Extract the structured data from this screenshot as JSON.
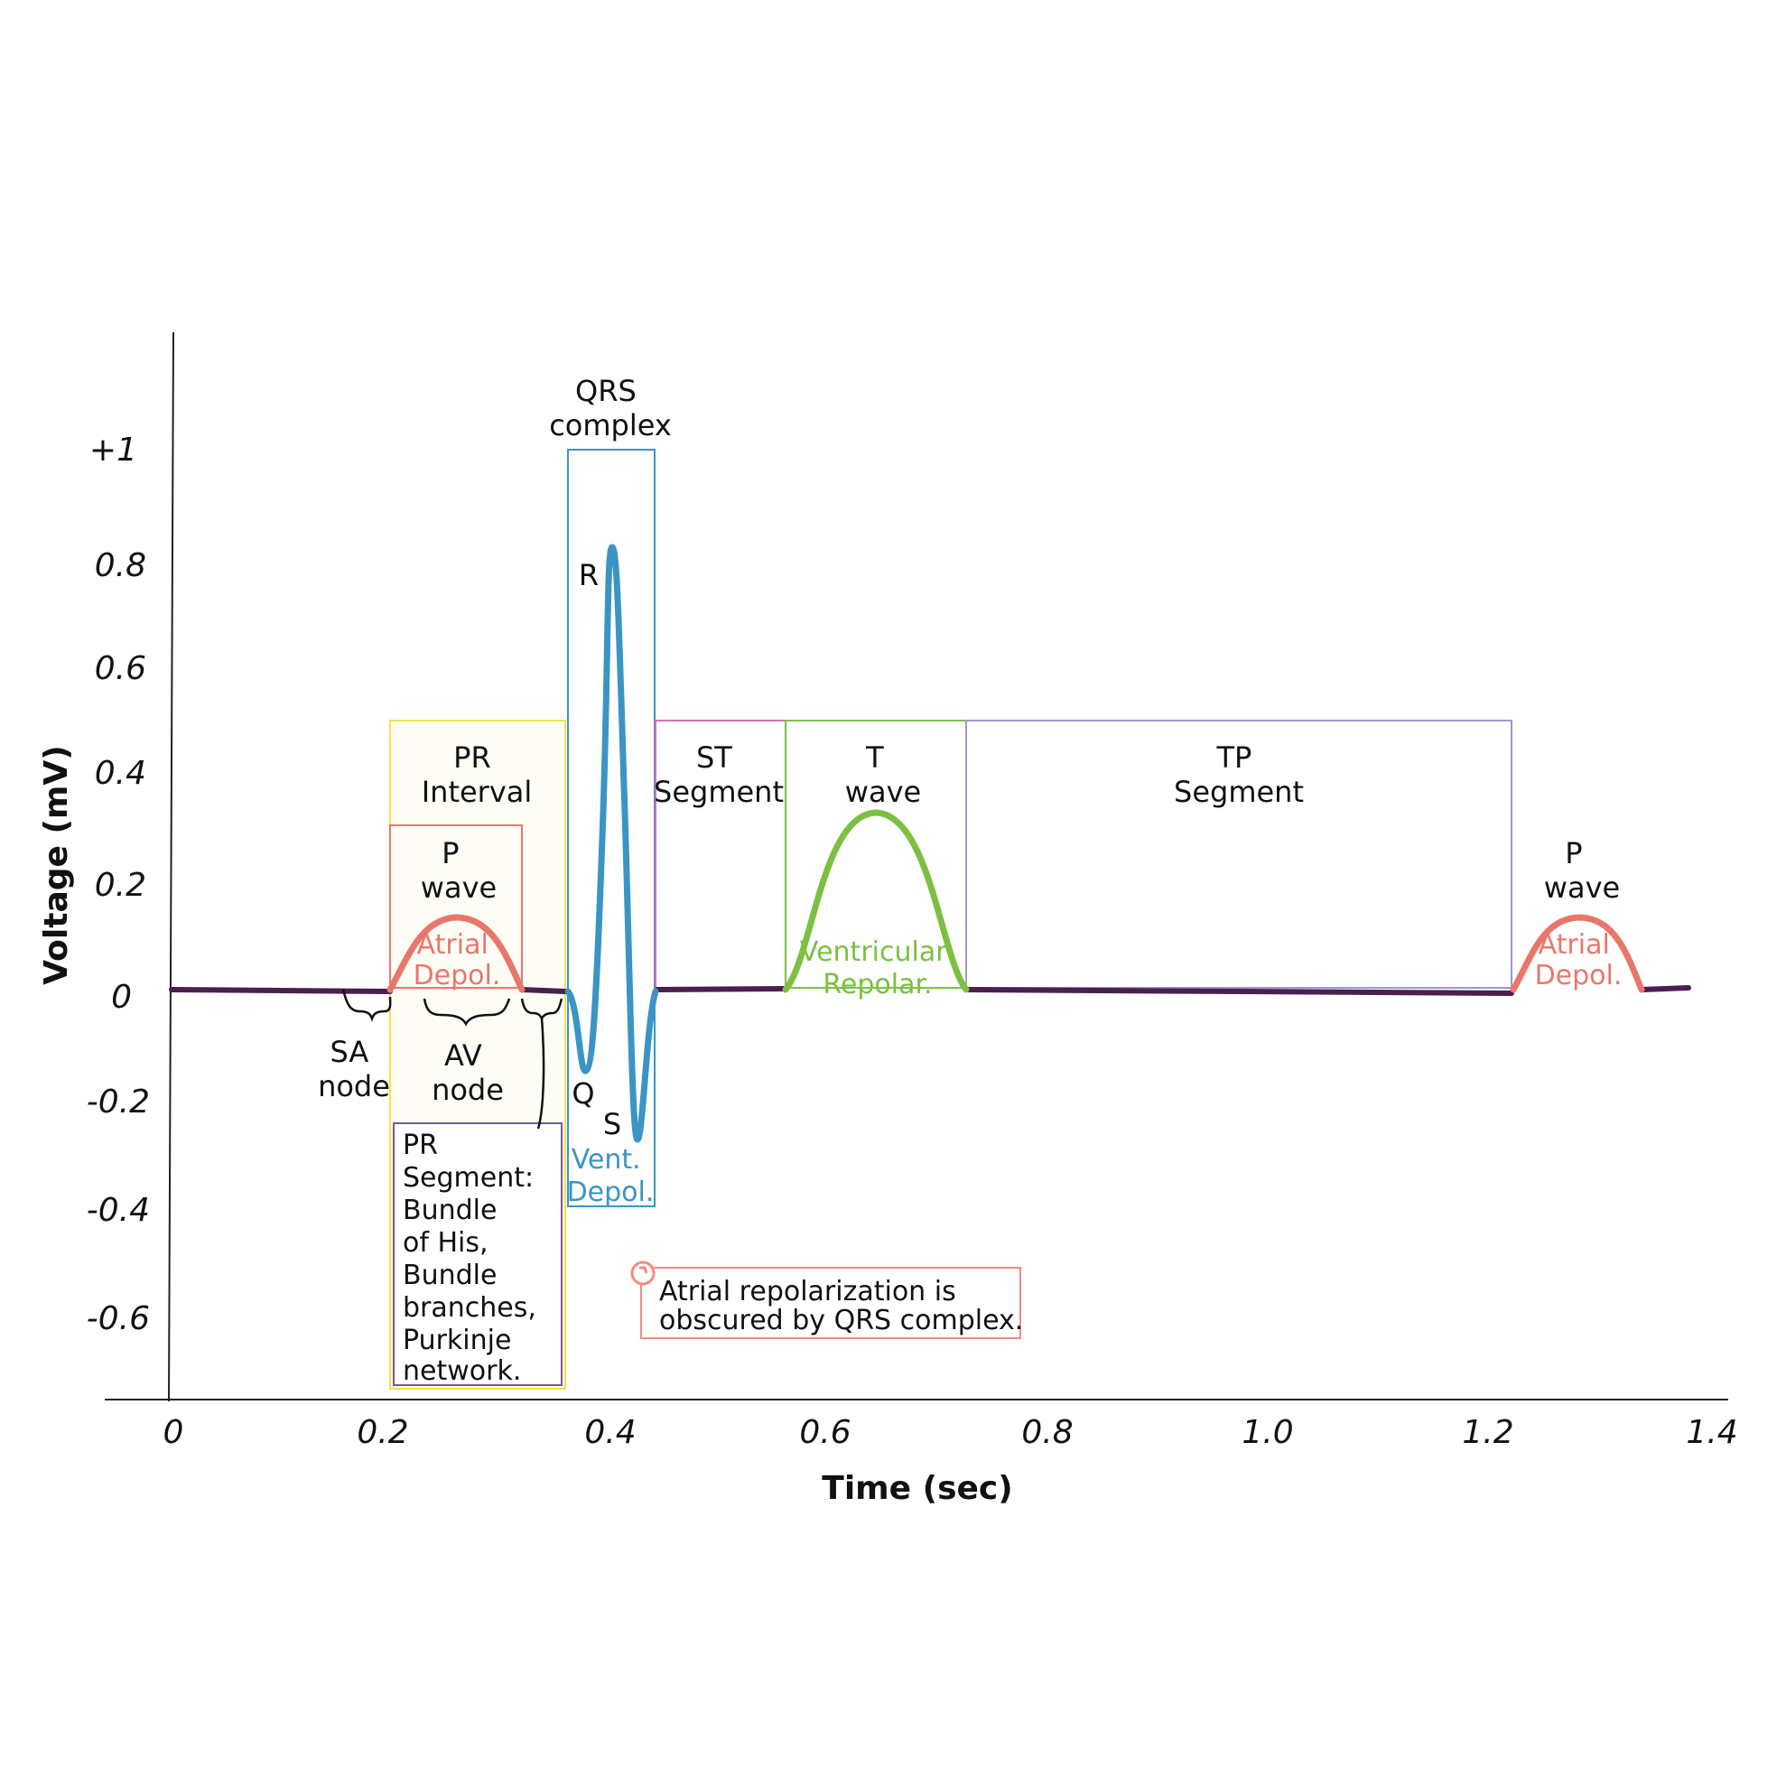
{
  "axes": {
    "x_title": "Time (sec)",
    "y_title": "Voltage (mV)",
    "x_ticks": [
      "0",
      "0.2",
      "0.4",
      "0.6",
      "0.8",
      "1.0",
      "1.2",
      "1.4"
    ],
    "y_ticks": [
      "+1",
      "0.8",
      "0.6",
      "0.4",
      "0.2",
      "0",
      "-0.2",
      "-0.4",
      "-0.6"
    ]
  },
  "regions": {
    "pr_interval": {
      "line1": "PR",
      "line2": "Interval"
    },
    "p_wave": {
      "line1": "P",
      "line2": "wave"
    },
    "p_wave_sub": {
      "line1": "Atrial",
      "line2": "Depol."
    },
    "qrs_complex": {
      "line1": "QRS",
      "line2": "complex"
    },
    "qrs_sub": {
      "line1": "Vent.",
      "line2": "Depol."
    },
    "st_segment": {
      "line1": "ST",
      "line2": "Segment"
    },
    "t_wave": {
      "line1": "T",
      "line2": "wave"
    },
    "t_wave_sub": {
      "line1": "Ventricular",
      "line2": "Repolar."
    },
    "tp_segment": {
      "line1": "TP",
      "line2": "Segment"
    },
    "p_wave_2": {
      "line1": "P",
      "line2": "wave"
    },
    "p_wave_2_sub": {
      "line1": "Atrial",
      "line2": "Depol."
    }
  },
  "points": {
    "r": "R",
    "q": "Q",
    "s": "S"
  },
  "nodes": {
    "sa": {
      "line1": "SA",
      "line2": "node"
    },
    "av": {
      "line1": "AV",
      "line2": "node"
    }
  },
  "pr_segment": {
    "lines": [
      "PR",
      "Segment:",
      "Bundle",
      "of His,",
      "Bundle",
      "branches,",
      "Purkinje",
      "network."
    ]
  },
  "note": {
    "line1": "Atrial repolarization is",
    "line2": "obscured by QRS complex."
  },
  "colors": {
    "baseline": "#4a1f4f",
    "p_wave": "#e8776a",
    "qrs": "#3a95c4",
    "t_wave": "#7cc043",
    "pr_interval_box": "#f2e14a",
    "st_box": "#d070b0",
    "tp_box": "#9a98d8",
    "pr_segment_box": "#7a5a8a",
    "note_box": "#f08c80"
  }
}
